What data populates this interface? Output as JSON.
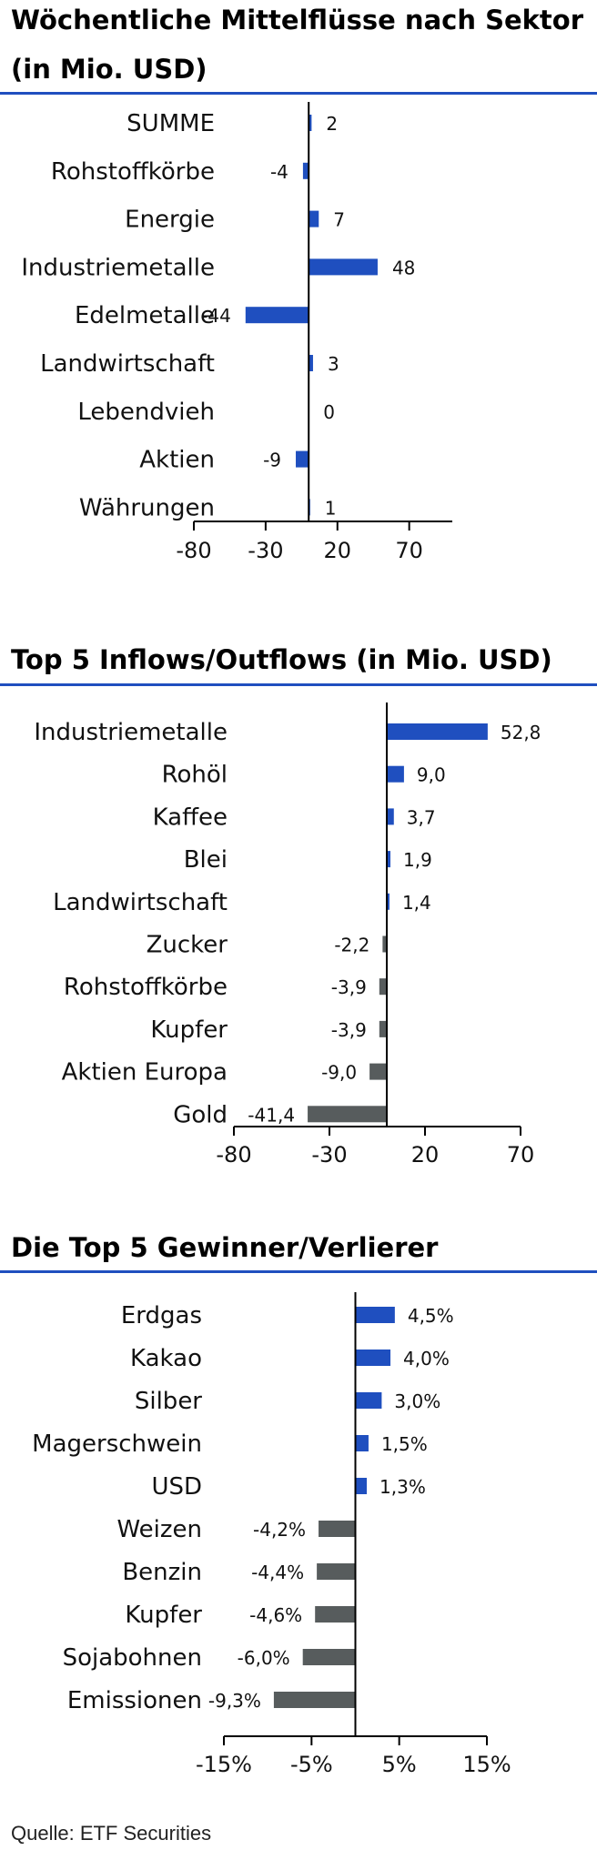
{
  "colors": {
    "positive": "#1f4fbf",
    "negative": "#575c5d",
    "rule": "#1f4fbf",
    "axis": "#000000"
  },
  "source": "Quelle: ETF Securities",
  "chart_data": [
    {
      "type": "bar",
      "orientation": "horizontal",
      "title_line1": "Wöchentliche Mittelflüsse nach Sektor",
      "title_line2": "(in Mio. USD)",
      "categories": [
        "SUMME",
        "Rohstoffkörbe",
        "Energie",
        "Industriemetalle",
        "Edelmetalle",
        "Landwirtschaft",
        "Lebendvieh",
        "Aktien",
        "Währungen"
      ],
      "values": [
        2,
        -4,
        7,
        48,
        -44,
        3,
        0,
        -9,
        1
      ],
      "data_labels": [
        "2",
        "-4",
        "7",
        "48",
        "-44",
        "3",
        "0",
        "-9",
        "1"
      ],
      "xlim": [
        -80,
        100
      ],
      "ticks": [
        -80,
        -30,
        20,
        70
      ],
      "tick_labels": [
        "-80",
        "-30",
        "20",
        "70"
      ],
      "grid": false,
      "negative_color": "positive"
    },
    {
      "type": "bar",
      "orientation": "horizontal",
      "title_line1": "Top 5 Inflows/Outflows (in Mio. USD)",
      "categories": [
        "Industriemetalle",
        "Rohöl",
        "Kaffee",
        "Blei",
        "Landwirtschaft",
        "Zucker",
        "Rohstoffkörbe",
        "Kupfer",
        "Aktien Europa",
        "Gold"
      ],
      "values": [
        52.8,
        9.0,
        3.7,
        1.9,
        1.4,
        -2.2,
        -3.9,
        -3.9,
        -9.0,
        -41.4
      ],
      "data_labels": [
        "52,8",
        "9,0",
        "3,7",
        "1,9",
        "1,4",
        "-2,2",
        "-3,9",
        "-3,9",
        "-9,0",
        "-41,4"
      ],
      "xlim": [
        -80,
        70
      ],
      "ticks": [
        -80,
        -30,
        20,
        70
      ],
      "tick_labels": [
        "-80",
        "-30",
        "20",
        "70"
      ],
      "grid": false,
      "negative_color": "negative"
    },
    {
      "type": "bar",
      "orientation": "horizontal",
      "title_line1": "Die Top 5 Gewinner/Verlierer",
      "categories": [
        "Erdgas",
        "Kakao",
        "Silber",
        "Magerschwein",
        "USD",
        "Weizen",
        "Benzin",
        "Kupfer",
        "Sojabohnen",
        "Emissionen"
      ],
      "values": [
        4.5,
        4.0,
        3.0,
        1.5,
        1.3,
        -4.2,
        -4.4,
        -4.6,
        -6.0,
        -9.3
      ],
      "data_labels": [
        "4,5%",
        "4,0%",
        "3,0%",
        "1,5%",
        "1,3%",
        "-4,2%",
        "-4,4%",
        "-4,6%",
        "-6,0%",
        "-9,3%"
      ],
      "xlim": [
        -15,
        15
      ],
      "ticks": [
        -15,
        -5,
        5,
        15
      ],
      "tick_labels": [
        "-15%",
        "-5%",
        "5%",
        "15%"
      ],
      "grid": false,
      "negative_color": "negative"
    }
  ]
}
